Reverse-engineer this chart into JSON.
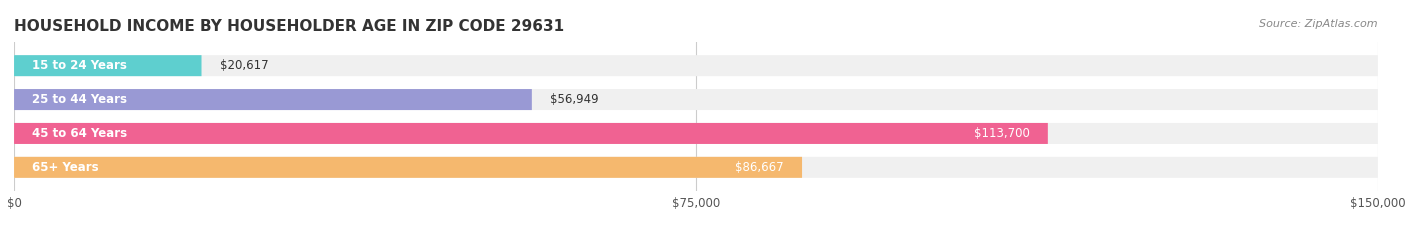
{
  "title": "HOUSEHOLD INCOME BY HOUSEHOLDER AGE IN ZIP CODE 29631",
  "source": "Source: ZipAtlas.com",
  "categories": [
    "15 to 24 Years",
    "25 to 44 Years",
    "45 to 64 Years",
    "65+ Years"
  ],
  "values": [
    20617,
    56949,
    113700,
    86667
  ],
  "bar_colors": [
    "#5ecfcf",
    "#9999d4",
    "#f06292",
    "#f5b86e"
  ],
  "bar_bg_color": "#f0f0f0",
  "value_labels": [
    "$20,617",
    "$56,949",
    "$113,700",
    "$86,667"
  ],
  "xlim": [
    0,
    150000
  ],
  "xticks": [
    0,
    75000,
    150000
  ],
  "xtick_labels": [
    "$0",
    "$75,000",
    "$150,000"
  ],
  "figsize": [
    14.06,
    2.33
  ],
  "dpi": 100,
  "background_color": "#ffffff",
  "title_fontsize": 11,
  "label_fontsize": 8.5,
  "value_fontsize": 8.5,
  "source_fontsize": 8
}
